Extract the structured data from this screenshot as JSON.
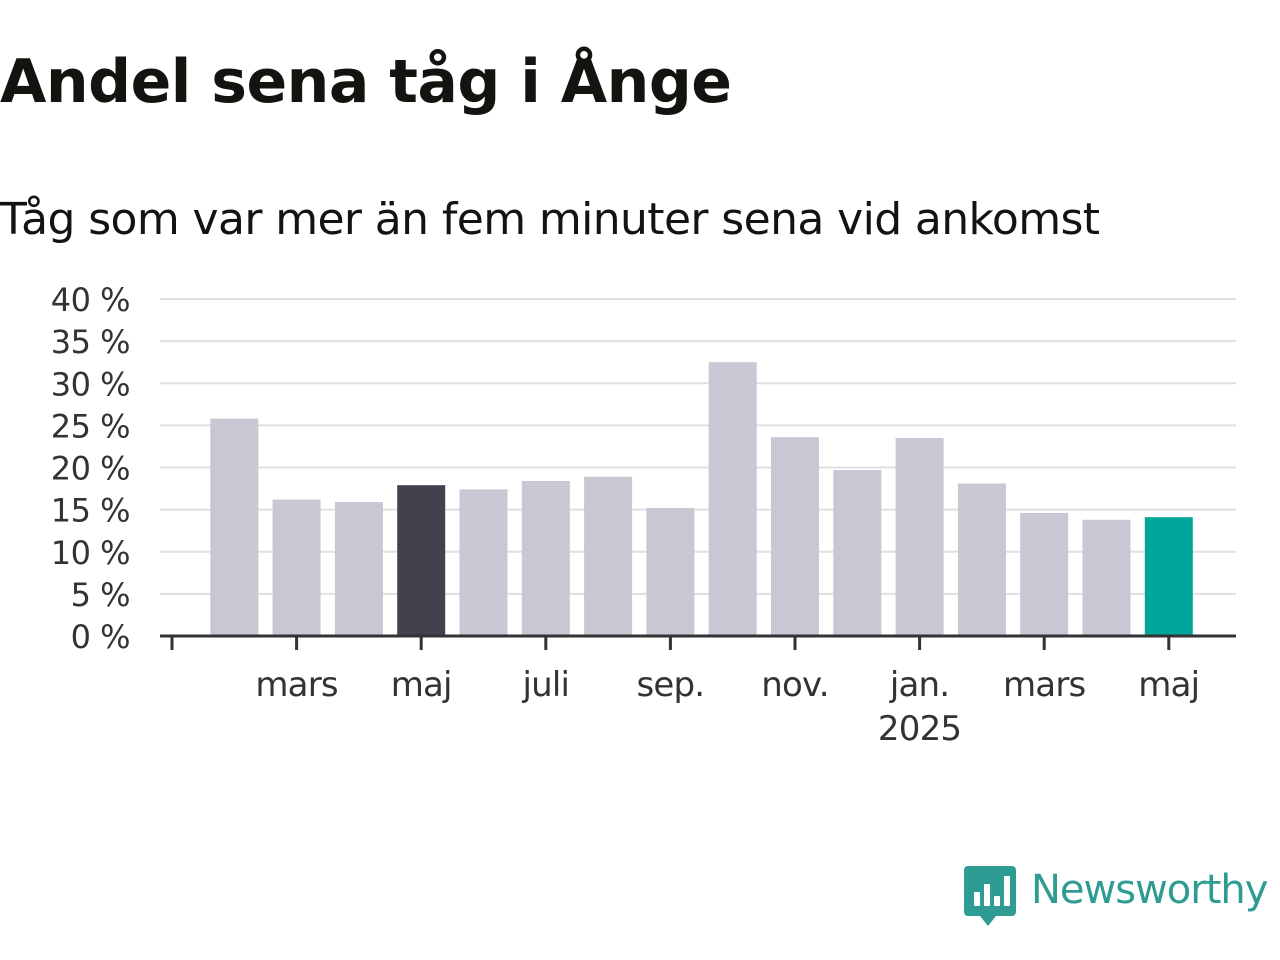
{
  "title": "Andel sena tåg i Ånge",
  "subtitle": "Tåg som var mer än fem minuter sena vid ankomst",
  "brand": {
    "name": "Newsworthy",
    "icon": "bar-chart-speech-bubble-icon",
    "color": "#2e9c93"
  },
  "colors": {
    "default_bar": "#c8c7d3",
    "highlight_bar": "#42414e",
    "current_bar": "#00a59a",
    "gridline": "#e0e0e0",
    "axis": "#333333",
    "text": "#12140f"
  },
  "chart_data": {
    "type": "bar",
    "title": "Andel sena tåg i Ånge",
    "subtitle": "Tåg som var mer än fem minuter sena vid ankomst",
    "xlabel": "",
    "ylabel": "",
    "ylim": [
      0,
      40
    ],
    "yticks": [
      0,
      5,
      10,
      15,
      20,
      25,
      30,
      35,
      40
    ],
    "ytick_labels": [
      "0 %",
      "5 %",
      "10 %",
      "15 %",
      "20 %",
      "25 %",
      "30 %",
      "35 %",
      "40 %"
    ],
    "grid": true,
    "categories": [
      "2024-01",
      "2024-02",
      "2024-03",
      "2024-04",
      "2024-05",
      "2024-06",
      "2024-07",
      "2024-08",
      "2024-09",
      "2024-10",
      "2024-11",
      "2024-12",
      "2025-01",
      "2025-02",
      "2025-03",
      "2025-04",
      "2025-05"
    ],
    "values": [
      null,
      25.8,
      16.2,
      15.9,
      17.9,
      17.4,
      18.4,
      18.9,
      15.2,
      32.5,
      23.6,
      19.7,
      23.5,
      18.1,
      14.6,
      13.8,
      14.1
    ],
    "highlight": {
      "2024-05": "highlight_bar",
      "2025-05": "current_bar"
    },
    "xtick_labels": [
      {
        "category": "2024-01",
        "label": ""
      },
      {
        "category": "2024-03",
        "label": "mars"
      },
      {
        "category": "2024-05",
        "label": "maj"
      },
      {
        "category": "2024-07",
        "label": "juli"
      },
      {
        "category": "2024-09",
        "label": "sep."
      },
      {
        "category": "2024-11",
        "label": "nov."
      },
      {
        "category": "2025-01",
        "label": "jan.",
        "label2": "2025"
      },
      {
        "category": "2025-03",
        "label": "mars"
      },
      {
        "category": "2025-05",
        "label": "maj"
      }
    ]
  }
}
